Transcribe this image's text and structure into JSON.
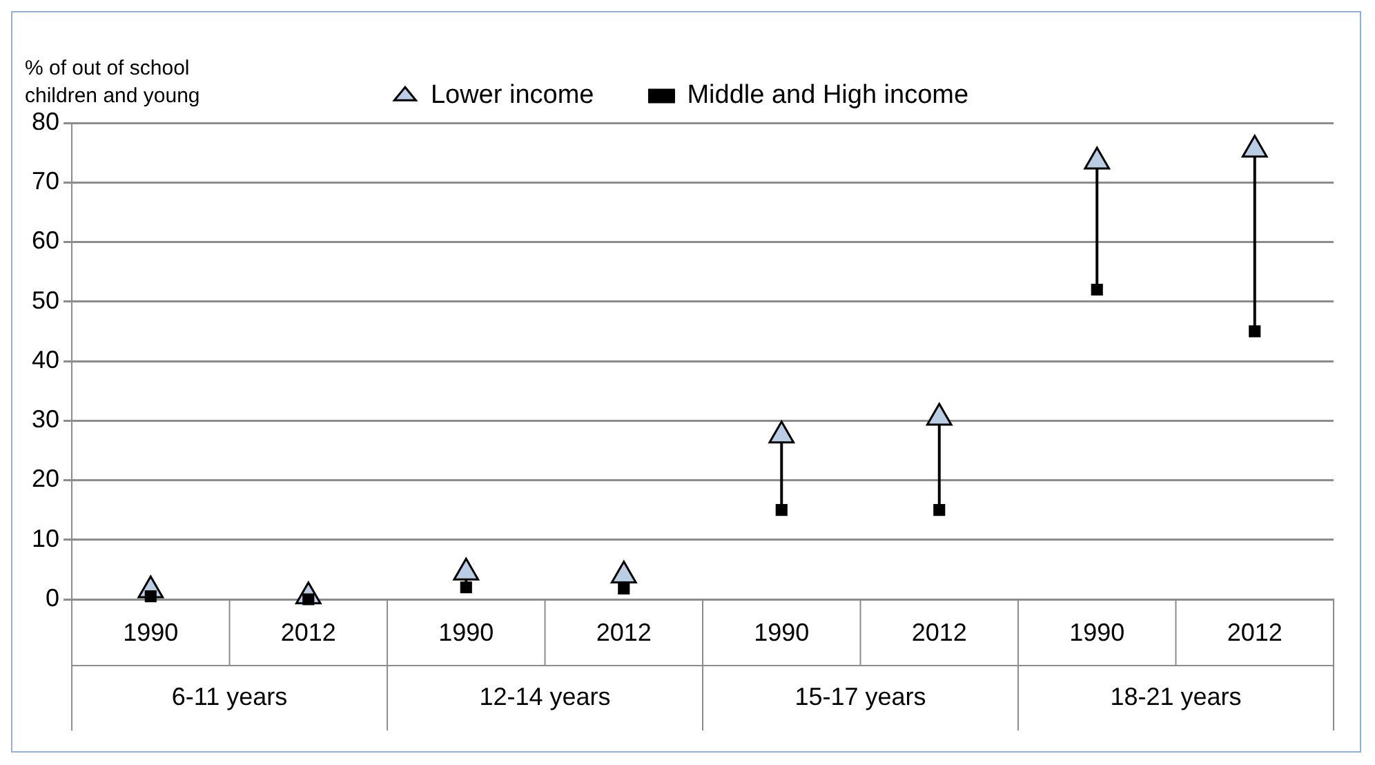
{
  "chart_data": {
    "type": "scatter",
    "ylabel": "% of out of school children and young",
    "categories": [
      "1990",
      "2012",
      "1990",
      "2012",
      "1990",
      "2012",
      "1990",
      "2012"
    ],
    "annotations": [
      "6-11 years",
      "12-14 years",
      "15-17 years",
      "18-21 years"
    ],
    "series": [
      {
        "name": "Lower income",
        "color": "#b9cde5",
        "marker": "triangle",
        "values": [
          1.5,
          0.5,
          4.5,
          4,
          27.5,
          30.5,
          73.5,
          75.5
        ]
      },
      {
        "name": "Middle and High income",
        "color": "#000000",
        "marker": "square",
        "values": [
          0.5,
          0,
          2,
          1.8,
          15,
          15,
          52,
          45
        ]
      }
    ],
    "ylim": [
      0,
      80
    ],
    "yticks": [
      0,
      10,
      20,
      30,
      40,
      50,
      60,
      70,
      80
    ],
    "grid": "y",
    "legend": "top"
  }
}
